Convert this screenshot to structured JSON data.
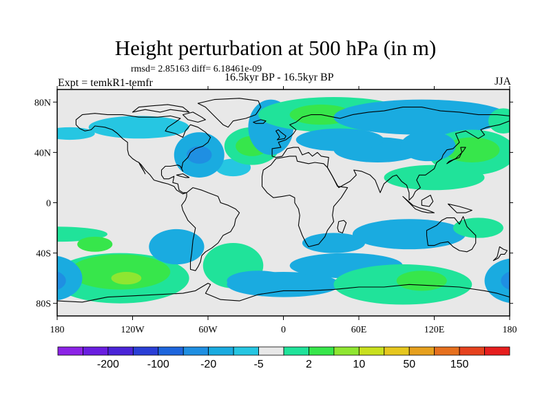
{
  "header": {
    "title": "Height perturbation at 500 hPa (in m)",
    "rmsd_line": "rmsd= 2.85163 diff= 6.18461e-09",
    "expt": "Expt = temkR1-temfr",
    "period": "16.5kyr BP - 16.5kyr BP",
    "season": "JJA"
  },
  "colors": {
    "background": "#e8e8e8",
    "coast": "#000000"
  },
  "chart_data": {
    "type": "heatmap",
    "title": "Height perturbation at 500 hPa (in m)",
    "variable": "500 hPa height perturbation",
    "units": "m",
    "xlabel": "",
    "ylabel": "",
    "xlim": [
      -180,
      180
    ],
    "ylim": [
      -90,
      90
    ],
    "x_ticks": [
      {
        "value": -180,
        "label": "180"
      },
      {
        "value": -120,
        "label": "120W"
      },
      {
        "value": -60,
        "label": "60W"
      },
      {
        "value": 0,
        "label": "0"
      },
      {
        "value": 60,
        "label": "60E"
      },
      {
        "value": 120,
        "label": "120E"
      },
      {
        "value": 180,
        "label": "180"
      }
    ],
    "y_ticks": [
      {
        "value": 80,
        "label": "80N"
      },
      {
        "value": 40,
        "label": "40N"
      },
      {
        "value": 0,
        "label": "0"
      },
      {
        "value": -40,
        "label": "40S"
      },
      {
        "value": -80,
        "label": "80S"
      }
    ],
    "colorbar": {
      "colors": [
        "#8c23e6",
        "#6a1ee0",
        "#4b24d8",
        "#2a3fd6",
        "#1e66dd",
        "#1f8fe2",
        "#1aabe0",
        "#26c6e2",
        "#e8e8e8",
        "#20e39a",
        "#37e64b",
        "#8fe631",
        "#c9e01e",
        "#e6c71e",
        "#e6a01e",
        "#e6701e",
        "#e6421e",
        "#e61e1e"
      ],
      "labels": [
        {
          "after": 1,
          "text": "-200"
        },
        {
          "after": 3,
          "text": "-100"
        },
        {
          "after": 5,
          "text": "-20"
        },
        {
          "after": 7,
          "text": "-5"
        },
        {
          "after": 9,
          "text": "2"
        },
        {
          "after": 11,
          "text": "10"
        },
        {
          "after": 13,
          "text": "50"
        },
        {
          "after": 15,
          "text": "150"
        }
      ]
    },
    "regions": [
      {
        "lon": -115,
        "lat": 60,
        "rlon": 40,
        "rlat": 9,
        "level": 7
      },
      {
        "lon": -170,
        "lat": 55,
        "rlon": 20,
        "rlat": 5,
        "level": 7
      },
      {
        "lon": -40,
        "lat": 28,
        "rlon": 14,
        "rlat": 7,
        "level": 7
      },
      {
        "lon": -67,
        "lat": 38,
        "rlon": 20,
        "rlat": 18,
        "level": 6
      },
      {
        "lon": -67,
        "lat": 38,
        "rlon": 10,
        "rlat": 7,
        "level": 5
      },
      {
        "lon": -25,
        "lat": 45,
        "rlon": 22,
        "rlat": 15,
        "level": 9
      },
      {
        "lon": -25,
        "lat": 45,
        "rlon": 13,
        "rlat": 8,
        "level": 10
      },
      {
        "lon": -10,
        "lat": 60,
        "rlon": 18,
        "rlat": 22,
        "level": 6
      },
      {
        "lon": 40,
        "lat": 70,
        "rlon": 60,
        "rlat": 14,
        "level": 9
      },
      {
        "lon": 30,
        "lat": 70,
        "rlon": 25,
        "rlat": 8,
        "level": 10
      },
      {
        "lon": 110,
        "lat": 68,
        "rlon": 70,
        "rlat": 14,
        "level": 6
      },
      {
        "lon": 75,
        "lat": 42,
        "rlon": 35,
        "rlat": 10,
        "level": 6
      },
      {
        "lon": 45,
        "lat": 50,
        "rlon": 35,
        "rlat": 9,
        "level": 6
      },
      {
        "lon": 150,
        "lat": 40,
        "rlon": 35,
        "rlat": 18,
        "level": 9
      },
      {
        "lon": 150,
        "lat": 42,
        "rlon": 22,
        "rlat": 10,
        "level": 10
      },
      {
        "lon": 175,
        "lat": 65,
        "rlon": 12,
        "rlat": 10,
        "level": 9
      },
      {
        "lon": 115,
        "lat": 45,
        "rlon": 22,
        "rlat": 12,
        "level": 6
      },
      {
        "lon": 120,
        "lat": 20,
        "rlon": 40,
        "rlat": 10,
        "level": 9
      },
      {
        "lon": -130,
        "lat": -60,
        "rlon": 55,
        "rlat": 20,
        "level": 9
      },
      {
        "lon": -180,
        "lat": -25,
        "rlon": 40,
        "rlat": 6,
        "level": 9
      },
      {
        "lon": -130,
        "lat": -55,
        "rlon": 40,
        "rlat": 14,
        "level": 10
      },
      {
        "lon": -125,
        "lat": -60,
        "rlon": 12,
        "rlat": 5,
        "level": 11
      },
      {
        "lon": -150,
        "lat": -33,
        "rlon": 14,
        "rlat": 6,
        "level": 10
      },
      {
        "lon": -185,
        "lat": -60,
        "rlon": 25,
        "rlat": 18,
        "level": 6
      },
      {
        "lon": -185,
        "lat": -62,
        "rlon": 12,
        "rlat": 8,
        "level": 5
      },
      {
        "lon": -85,
        "lat": -35,
        "rlon": 22,
        "rlat": 14,
        "level": 6
      },
      {
        "lon": -40,
        "lat": -50,
        "rlon": 24,
        "rlat": 18,
        "level": 9
      },
      {
        "lon": 0,
        "lat": -65,
        "rlon": 45,
        "rlat": 10,
        "level": 6
      },
      {
        "lon": -20,
        "lat": -62,
        "rlon": 25,
        "rlat": 8,
        "level": 6
      },
      {
        "lon": 50,
        "lat": -50,
        "rlon": 45,
        "rlat": 10,
        "level": 6
      },
      {
        "lon": 40,
        "lat": -32,
        "rlon": 25,
        "rlat": 8,
        "level": 6
      },
      {
        "lon": 100,
        "lat": -25,
        "rlon": 45,
        "rlat": 12,
        "level": 6
      },
      {
        "lon": 155,
        "lat": -20,
        "rlon": 20,
        "rlat": 8,
        "level": 9
      },
      {
        "lon": 95,
        "lat": -65,
        "rlon": 55,
        "rlat": 16,
        "level": 9
      },
      {
        "lon": 110,
        "lat": -62,
        "rlon": 20,
        "rlat": 8,
        "level": 10
      },
      {
        "lon": 185,
        "lat": -62,
        "rlon": 25,
        "rlat": 18,
        "level": 6
      },
      {
        "lon": 185,
        "lat": -62,
        "rlon": 12,
        "rlat": 8,
        "level": 5
      }
    ]
  }
}
